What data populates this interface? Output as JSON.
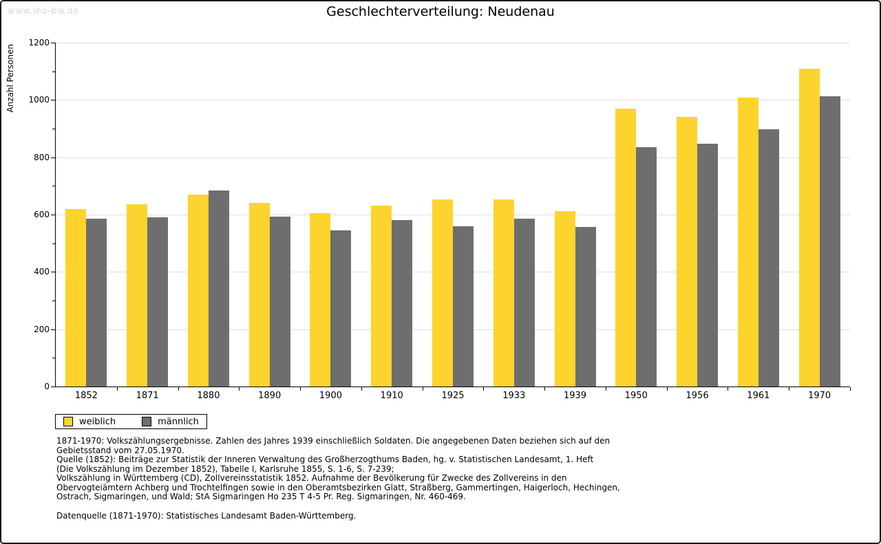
{
  "watermark": "www.leo-bw.de",
  "chart_data": {
    "type": "bar",
    "title": "Geschlechterverteilung: Neudenau",
    "ylabel": "Anzahl Personen",
    "xlabel": "",
    "ylim": [
      0,
      1200
    ],
    "ytick_step": 200,
    "ytick_minor_step": 100,
    "grid": "horizontal",
    "legend_position": "bottom-left",
    "categories": [
      "1852",
      "1871",
      "1880",
      "1890",
      "1900",
      "1910",
      "1925",
      "1933",
      "1939",
      "1950",
      "1956",
      "1961",
      "1970"
    ],
    "series": [
      {
        "name": "weiblich",
        "color": "#FCD42D",
        "values": [
          620,
          635,
          670,
          640,
          605,
          632,
          653,
          653,
          612,
          970,
          940,
          1008,
          1110
        ]
      },
      {
        "name": "männlich",
        "color": "#6E6E6E",
        "values": [
          585,
          590,
          685,
          592,
          546,
          580,
          560,
          585,
          557,
          836,
          848,
          898,
          1012
        ]
      }
    ]
  },
  "colors": {
    "gridline": "#DEDEDE",
    "axis": "#000000",
    "watermark": "#D8D8D8"
  },
  "footnotes": [
    "1871-1970: Volkszählungsergebnisse. Zahlen des Jahres 1939 einschließlich Soldaten. Die angegebenen Daten beziehen sich auf den",
    "Gebietsstand vom 27.05.1970.",
    "Quelle (1852): Beiträge zur Statistik der Inneren Verwaltung des Großherzogthums Baden, hg. v. Statistischen Landesamt, 1. Heft",
    "(Die Volkszählung im Dezember 1852), Tabelle I, Karlsruhe 1855, S. 1-6, S. 7-239;",
    "Volkszählung in Württemberg (CD), Zollvereinsstatistik 1852. Aufnahme der Bevölkerung für Zwecke des Zollvereins in den",
    "Obervogteiämtern Achberg und Trochtelfingen sowie in den Oberamtsbezirken Glatt, Straßberg, Gammertingen, Haigerloch, Hechingen,",
    "Ostrach, Sigmaringen, und Wald; StA Sigmaringen Ho 235 T 4-5 Pr. Reg. Sigmaringen, Nr. 460-469.",
    "Datenquelle (1871-1970): Statistisches Landesamt Baden-Württemberg."
  ]
}
